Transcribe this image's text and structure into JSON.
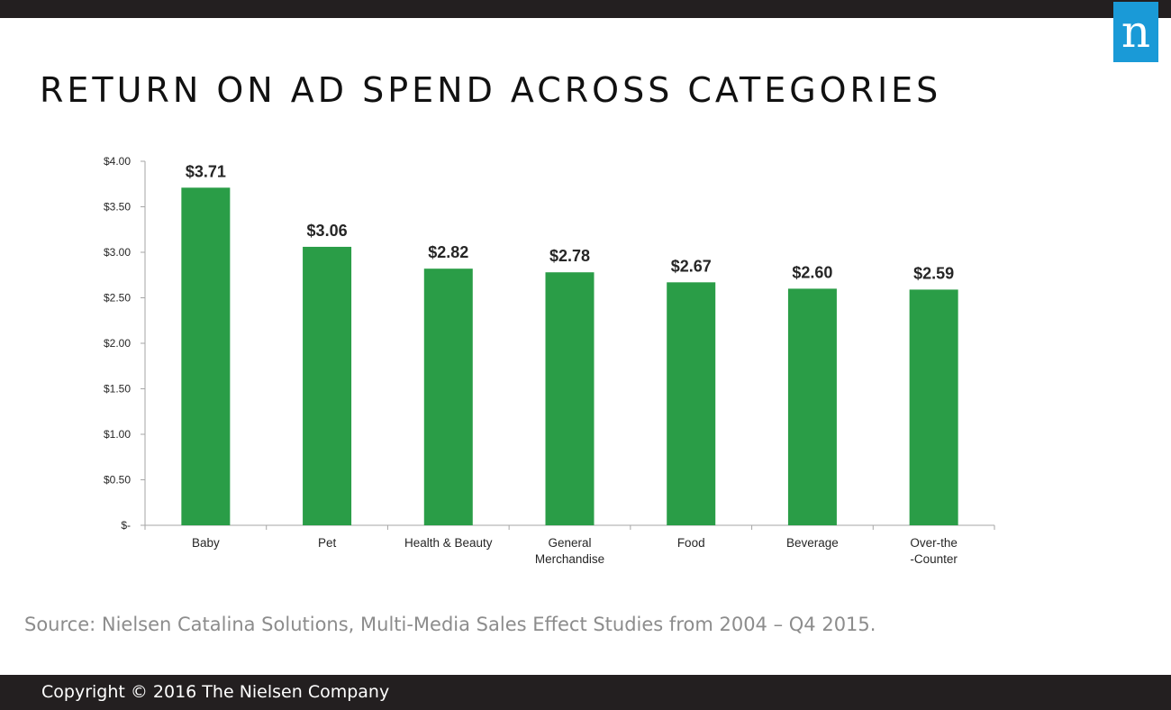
{
  "header": {
    "logo_letter": "n",
    "title": "RETURN ON AD SPEND ACROSS CATEGORIES"
  },
  "colors": {
    "bar": "#2a9d47",
    "axis": "#a6a6a6",
    "label": "#262626"
  },
  "chart_data": {
    "type": "bar",
    "title": "",
    "xlabel": "",
    "ylabel": "",
    "categories": [
      "Baby",
      "Pet",
      "Health & Beauty",
      "General Merchandise",
      "Food",
      "Beverage",
      "Over-the -Counter"
    ],
    "values": [
      3.71,
      3.06,
      2.82,
      2.78,
      2.67,
      2.6,
      2.59
    ],
    "data_labels": [
      "$3.71",
      "$3.06",
      "$2.82",
      "$2.78",
      "$2.67",
      "$2.60",
      "$2.59"
    ],
    "ylim": [
      0,
      4
    ],
    "y_ticks": [
      0,
      0.5,
      1,
      1.5,
      2,
      2.5,
      3,
      3.5,
      4
    ],
    "y_tick_labels": [
      "$-",
      "$0.50",
      "$1.00",
      "$1.50",
      "$2.00",
      "$2.50",
      "$3.00",
      "$3.50",
      "$4.00"
    ],
    "grid": false,
    "legend": "none"
  },
  "footer": {
    "source": "Source: Nielsen Catalina Solutions, Multi-Media Sales Effect Studies from 2004 – Q4 2015.",
    "copyright": "Copyright © 2016 The Nielsen Company"
  }
}
